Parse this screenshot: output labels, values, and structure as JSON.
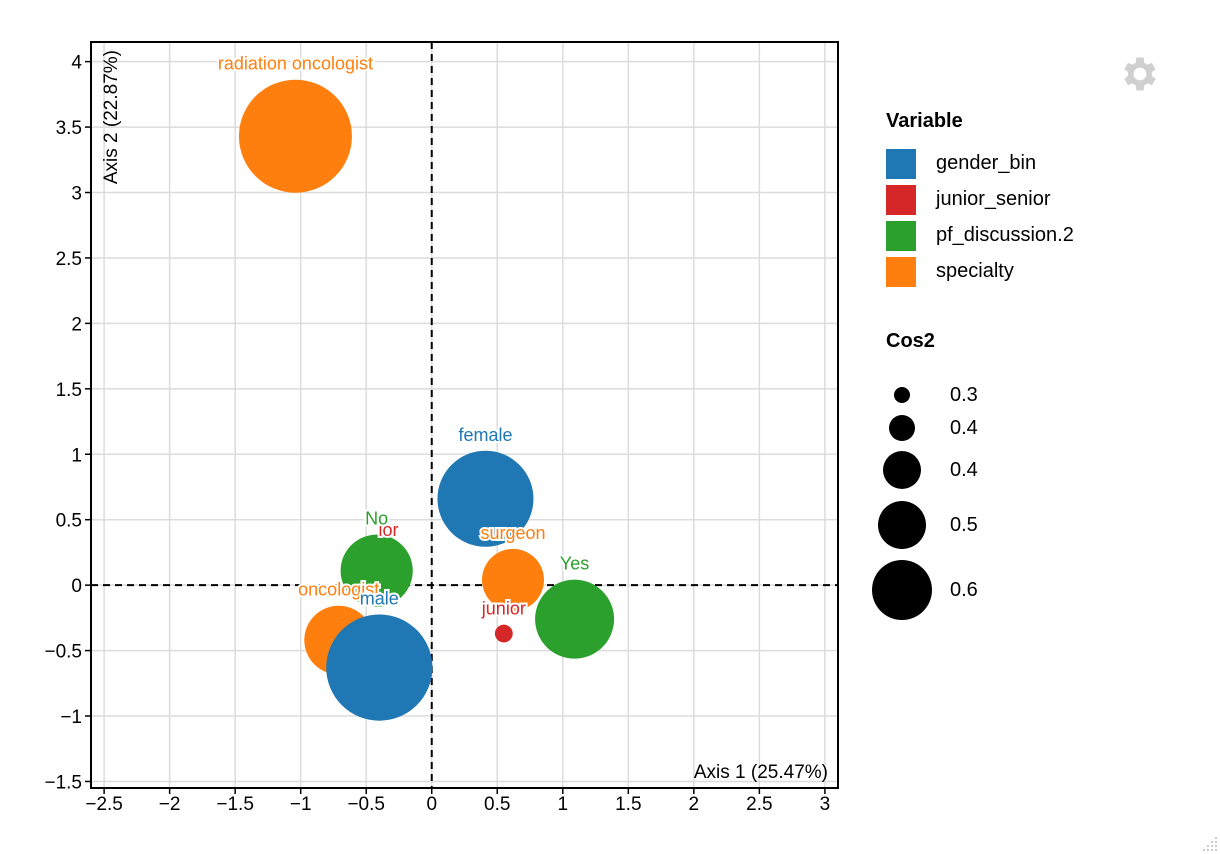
{
  "chart_data": {
    "type": "scatter",
    "xlabel": "Axis 1 (25.47%)",
    "ylabel": "Axis 2 (22.87%)",
    "xlim": [
      -2.6,
      3.1
    ],
    "ylim": [
      -1.55,
      4.15
    ],
    "xticks": [
      -2.5,
      -2,
      -1.5,
      -1,
      -0.5,
      0,
      0.5,
      1,
      1.5,
      2,
      2.5,
      3
    ],
    "xtick_labels": [
      "−2.5",
      "−2",
      "−1.5",
      "−1",
      "−0.5",
      "0",
      "0.5",
      "1",
      "1.5",
      "2",
      "2.5",
      "3"
    ],
    "yticks": [
      4,
      3.5,
      3,
      2.5,
      2,
      1.5,
      1,
      0.5,
      0,
      -0.5,
      -1,
      -1.5
    ],
    "ytick_labels": [
      "4",
      "3.5",
      "3",
      "2.5",
      "2",
      "1.5",
      "1",
      "0.5",
      "0",
      "−0.5",
      "−1",
      "−1.5"
    ],
    "grid": true,
    "reference_lines": {
      "x": 0,
      "y": 0,
      "style": "dashed"
    },
    "points": [
      {
        "label": "radiation oncologist",
        "variable": "specialty",
        "x": -1.04,
        "y": 3.43,
        "cos2": 0.55
      },
      {
        "label": "female",
        "variable": "gender_bin",
        "x": 0.41,
        "y": 0.66,
        "cos2": 0.5
      },
      {
        "label": "surgeon",
        "variable": "specialty",
        "x": 0.62,
        "y": 0.04,
        "cos2": 0.4
      },
      {
        "label": "Yes",
        "variable": "pf_discussion.2",
        "x": 1.09,
        "y": -0.26,
        "cos2": 0.45
      },
      {
        "label": "junior",
        "variable": "junior_senior",
        "x": 0.55,
        "y": -0.37,
        "cos2": 0.27
      },
      {
        "label": "ior",
        "variable": "junior_senior",
        "x": -0.33,
        "y": 0.23,
        "cos2": 0.27
      },
      {
        "label": "No",
        "variable": "pf_discussion.2",
        "x": -0.42,
        "y": 0.11,
        "cos2": 0.43
      },
      {
        "label": "oncologist",
        "variable": "specialty",
        "x": -0.71,
        "y": -0.42,
        "cos2": 0.42
      },
      {
        "label": "male",
        "variable": "gender_bin",
        "x": -0.4,
        "y": -0.63,
        "cos2": 0.53
      }
    ],
    "legend": {
      "title": "Variable",
      "placement": "right",
      "entries": [
        {
          "name": "gender_bin",
          "color": "#1f77b4"
        },
        {
          "name": "junior_senior",
          "color": "#d62728"
        },
        {
          "name": "pf_discussion.2",
          "color": "#2ca02c"
        },
        {
          "name": "specialty",
          "color": "#ff7f0e"
        }
      ]
    },
    "size_legend": {
      "title": "Cos2",
      "entries": [
        {
          "label": "0.3",
          "value": 0.3
        },
        {
          "label": "0.4",
          "value": 0.4
        },
        {
          "label": "0.4",
          "value": 0.45
        },
        {
          "label": "0.5",
          "value": 0.5
        },
        {
          "label": "0.6",
          "value": 0.6
        }
      ]
    }
  },
  "toolbar": {
    "settings_icon": "gear-icon"
  },
  "resize_icon": "resize-handle-icon"
}
